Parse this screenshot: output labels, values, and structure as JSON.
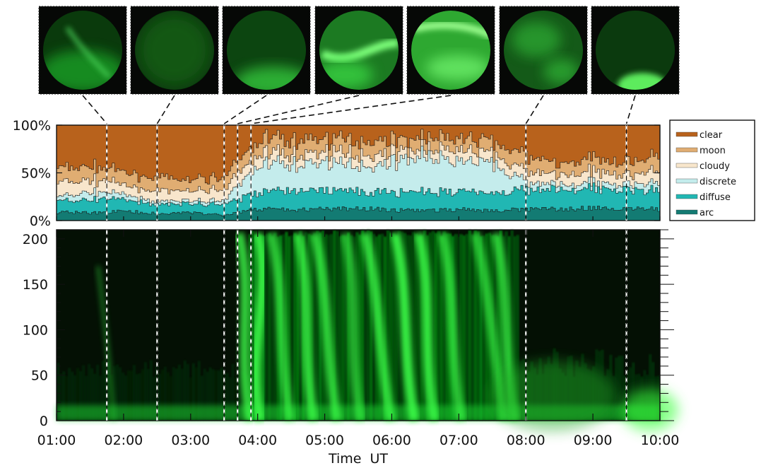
{
  "chart_data": [
    {
      "type": "area",
      "title": "",
      "xlabel": "",
      "ylabel": "",
      "yticks": [
        "100%",
        "50%",
        "0%"
      ],
      "ylim": [
        0,
        100
      ],
      "legend": {
        "placement": "right",
        "entries": [
          "clear",
          "moon",
          "cloudy",
          "discrete",
          "diffuse",
          "arc"
        ]
      },
      "colors": {
        "clear": "#b8621c",
        "moon": "#e0ad72",
        "cloudy": "#f8e6cc",
        "discrete": "#c4ecec",
        "diffuse": "#21b7b3",
        "arc": "#137b73"
      },
      "x_hours": [
        1.0,
        1.5,
        2.0,
        2.5,
        3.0,
        3.5,
        4.0,
        4.5,
        5.0,
        5.5,
        6.0,
        6.5,
        7.0,
        7.5,
        8.0,
        8.5,
        9.0,
        9.5,
        9.9
      ],
      "series": [
        {
          "name": "arc",
          "values": [
            9,
            8,
            10,
            7,
            8,
            6,
            12,
            11,
            12,
            13,
            11,
            10,
            12,
            10,
            12,
            12,
            13,
            12,
            12
          ]
        },
        {
          "name": "diffuse",
          "values": [
            12,
            14,
            12,
            10,
            10,
            11,
            18,
            20,
            20,
            18,
            19,
            20,
            18,
            19,
            20,
            20,
            21,
            20,
            20
          ]
        },
        {
          "name": "discrete",
          "values": [
            4,
            8,
            5,
            3,
            3,
            4,
            30,
            28,
            30,
            26,
            33,
            38,
            32,
            30,
            8,
            5,
            6,
            6,
            8
          ]
        },
        {
          "name": "cloudy",
          "values": [
            15,
            13,
            10,
            11,
            10,
            12,
            12,
            10,
            11,
            12,
            10,
            8,
            12,
            10,
            11,
            10,
            12,
            10,
            12
          ]
        },
        {
          "name": "moon",
          "values": [
            15,
            14,
            13,
            14,
            11,
            13,
            14,
            15,
            14,
            15,
            13,
            12,
            12,
            13,
            16,
            12,
            14,
            13,
            16
          ]
        },
        {
          "name": "clear",
          "values": [
            45,
            43,
            50,
            55,
            58,
            54,
            14,
            16,
            13,
            16,
            14,
            12,
            14,
            18,
            33,
            41,
            34,
            39,
            32
          ]
        }
      ]
    },
    {
      "type": "heatmap",
      "xlabel": "Time  UT",
      "ylabel": "",
      "xticks": [
        "01:00",
        "02:00",
        "03:00",
        "04:00",
        "05:00",
        "06:00",
        "07:00",
        "08:00",
        "09:00",
        "10:00"
      ],
      "yticks": [
        "200",
        "150",
        "100",
        "50",
        "0"
      ],
      "ylim": [
        0,
        210
      ],
      "colormap": [
        "#000000",
        "#00ff20"
      ]
    }
  ],
  "markers_hours": [
    1.75,
    2.5,
    3.5,
    3.7,
    3.9,
    8.0,
    9.5
  ],
  "sky_images": [
    {
      "id": "sky-1",
      "look": "faint-arc"
    },
    {
      "id": "sky-2",
      "look": "dim"
    },
    {
      "id": "sky-3",
      "look": "horizon-glow"
    },
    {
      "id": "sky-4",
      "look": "bright-arc"
    },
    {
      "id": "sky-5",
      "look": "bright-full"
    },
    {
      "id": "sky-6",
      "look": "diffuse-patches"
    },
    {
      "id": "sky-7",
      "look": "bottom-glow"
    }
  ]
}
